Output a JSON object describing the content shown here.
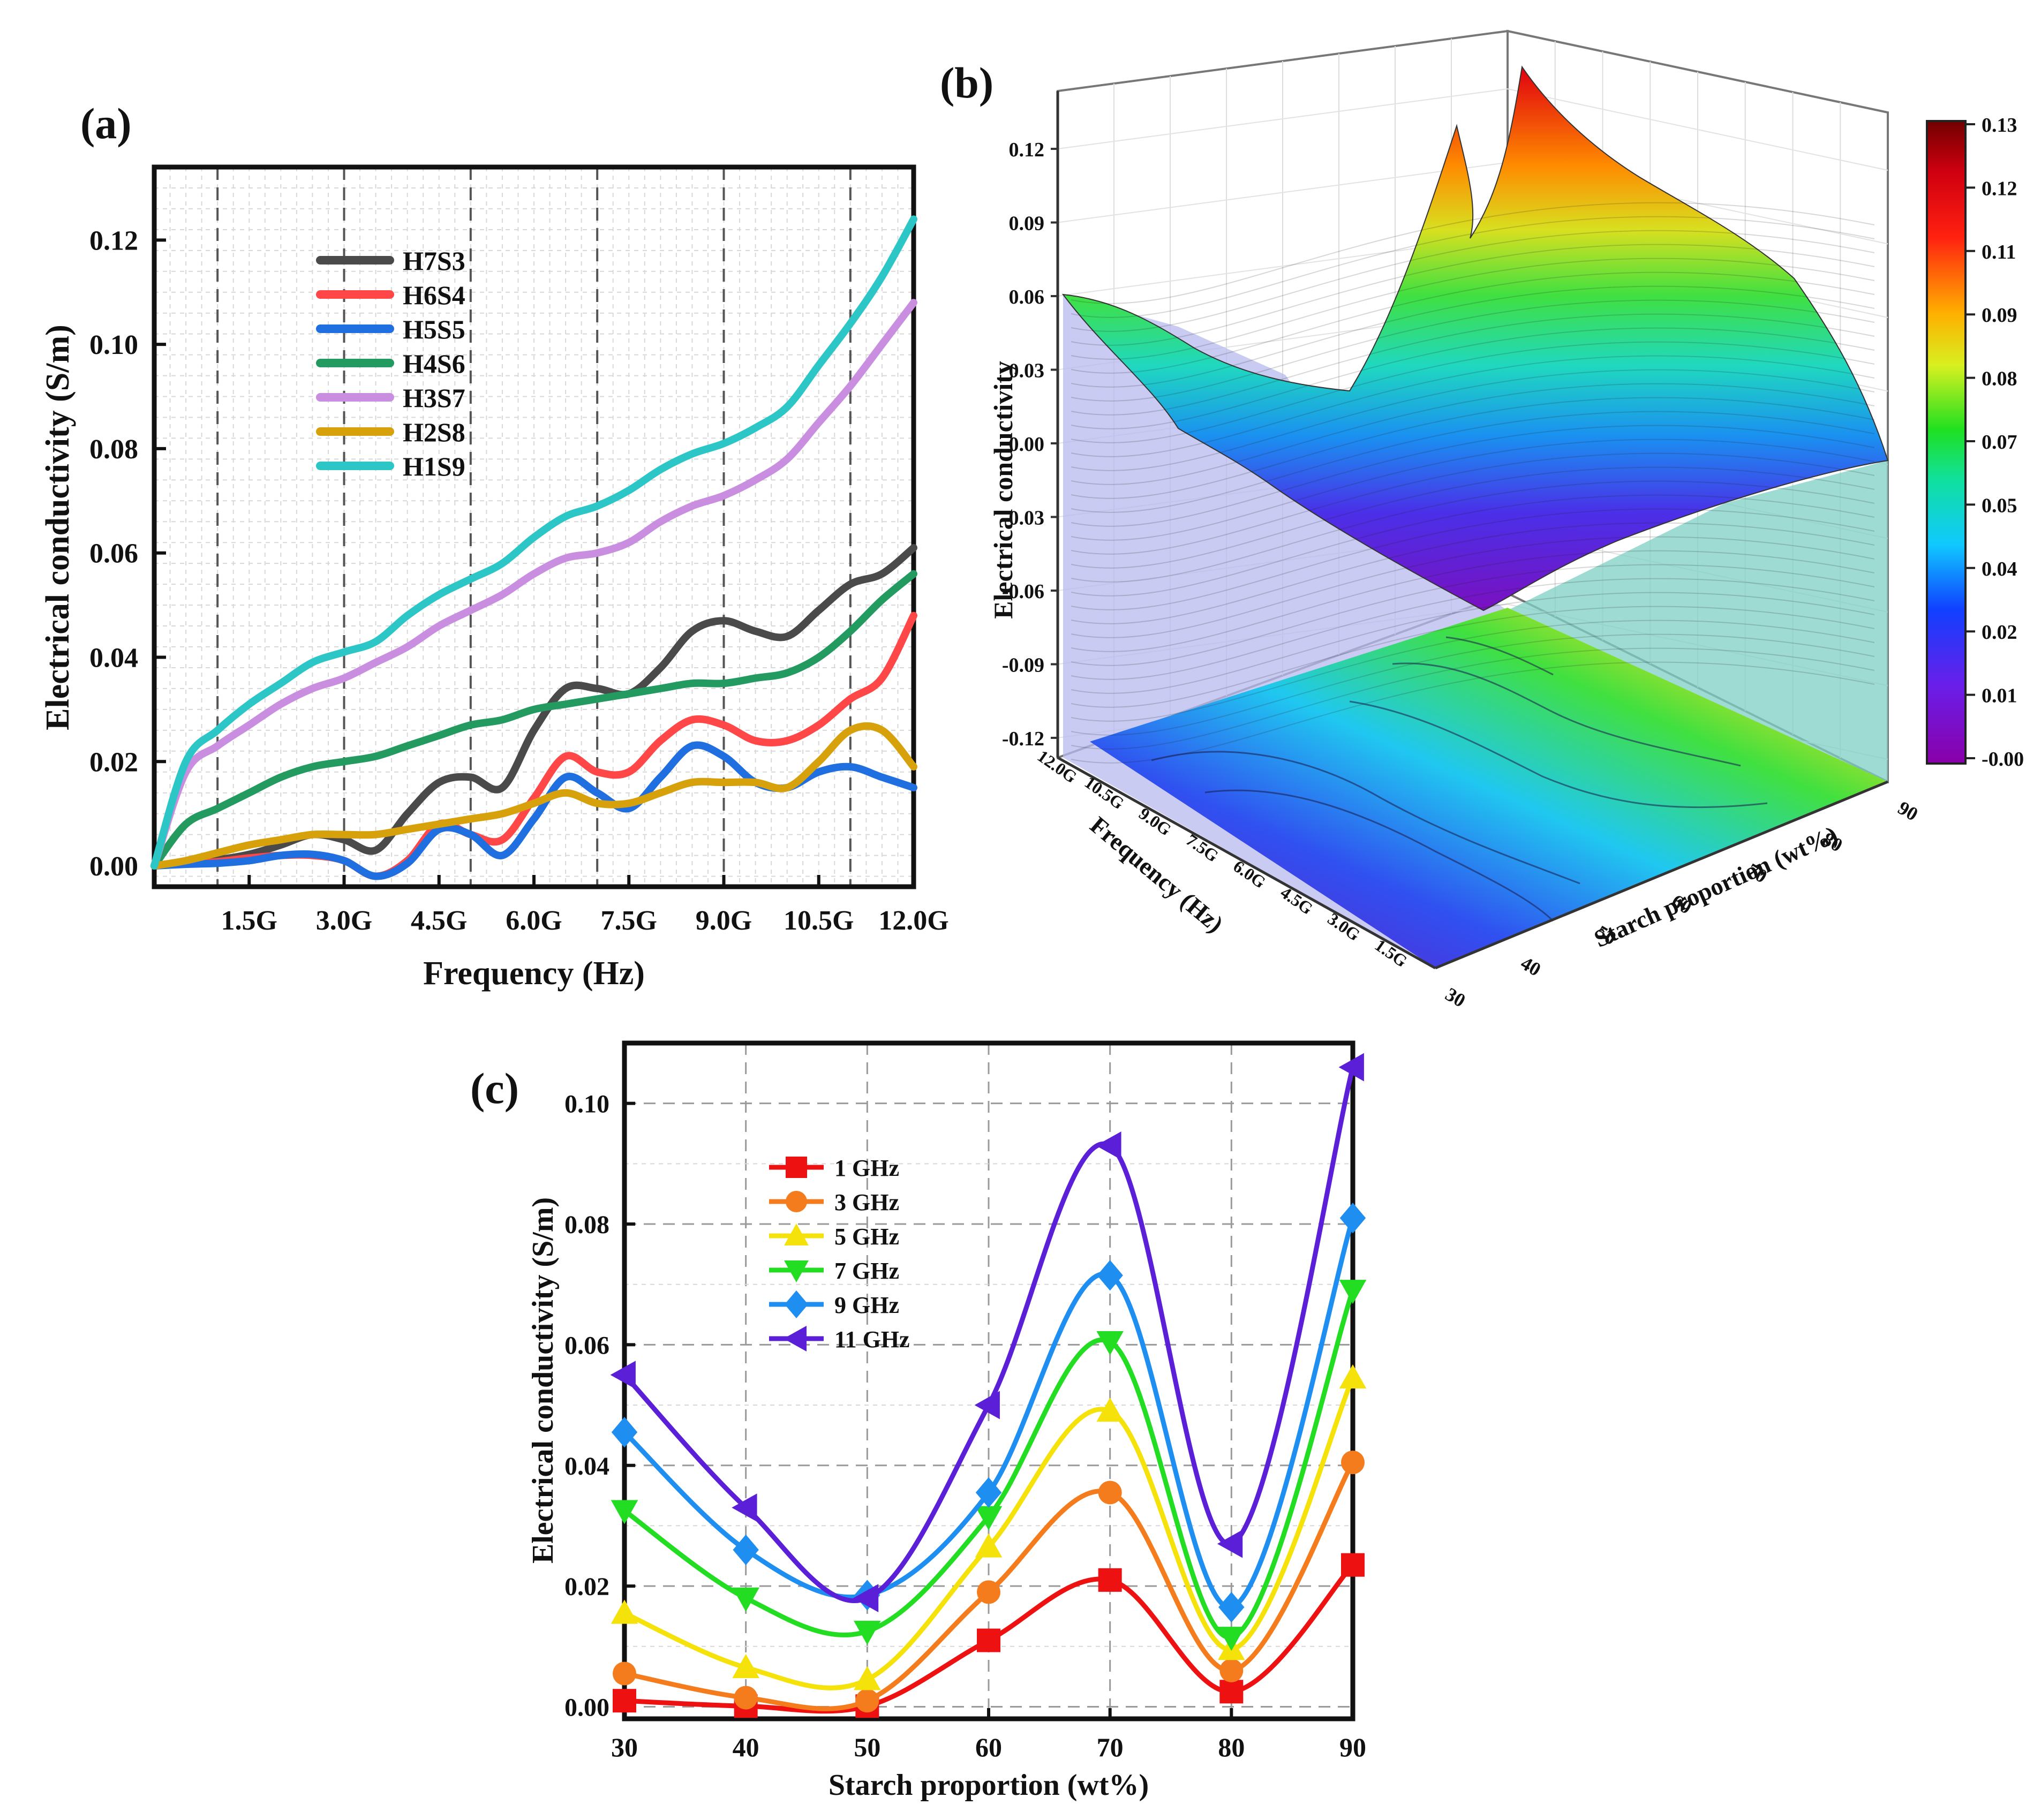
{
  "chart_data": [
    {
      "panel_label": "(a)",
      "type": "line",
      "xlabel": "Frequency (Hz)",
      "ylabel": "Electrical conductivity (S/m)",
      "xlim": [
        0,
        12
      ],
      "ylim": [
        -0.004,
        0.134
      ],
      "x_tick_values": [
        1.5,
        3.0,
        4.5,
        6.0,
        7.5,
        9.0,
        10.5,
        12.0
      ],
      "x_tick_labels": [
        "1.5G",
        "3.0G",
        "4.5G",
        "6.0G",
        "7.5G",
        "9.0G",
        "10.5G",
        "12.0G"
      ],
      "y_tick_values": [
        0.0,
        0.02,
        0.04,
        0.06,
        0.08,
        0.1,
        0.12
      ],
      "y_tick_labels": [
        "0.00",
        "0.02",
        "0.04",
        "0.06",
        "0.08",
        "0.10",
        "0.12"
      ],
      "legend_position": "top-left",
      "x": [
        0,
        0.5,
        1,
        1.5,
        2,
        2.5,
        3,
        3.5,
        4,
        4.5,
        5,
        5.5,
        6,
        6.5,
        7,
        7.5,
        8,
        8.5,
        9,
        9.5,
        10,
        10.5,
        11,
        11.5,
        12
      ],
      "series": [
        {
          "name": "H7S3",
          "color": "#4a4a4a",
          "values": [
            0,
            0.0008,
            0.0012,
            0.0022,
            0.004,
            0.006,
            0.005,
            0.003,
            0.01,
            0.016,
            0.017,
            0.015,
            0.026,
            0.034,
            0.034,
            0.033,
            0.038,
            0.045,
            0.047,
            0.045,
            0.044,
            0.049,
            0.054,
            0.056,
            0.061
          ]
        },
        {
          "name": "H6S4",
          "color": "#ff4747",
          "values": [
            0,
            0.0004,
            0.0008,
            0.0015,
            0.002,
            0.002,
            0.001,
            -0.002,
            0.001,
            0.008,
            0.006,
            0.005,
            0.013,
            0.021,
            0.018,
            0.018,
            0.024,
            0.028,
            0.027,
            0.024,
            0.024,
            0.027,
            0.032,
            0.036,
            0.048
          ]
        },
        {
          "name": "H5S5",
          "color": "#1f6fe0",
          "values": [
            0,
            0.0003,
            0.0005,
            0.001,
            0.002,
            0.0022,
            0.001,
            -0.002,
            0.0005,
            0.007,
            0.006,
            0.002,
            0.009,
            0.017,
            0.014,
            0.011,
            0.017,
            0.023,
            0.021,
            0.016,
            0.015,
            0.018,
            0.019,
            0.017,
            0.015
          ]
        },
        {
          "name": "H4S6",
          "color": "#239a5f",
          "values": [
            0,
            0.008,
            0.011,
            0.014,
            0.017,
            0.019,
            0.02,
            0.021,
            0.023,
            0.025,
            0.027,
            0.028,
            0.03,
            0.031,
            0.032,
            0.033,
            0.034,
            0.035,
            0.035,
            0.036,
            0.037,
            0.04,
            0.045,
            0.051,
            0.056
          ]
        },
        {
          "name": "H3S7",
          "color": "#c98ee0",
          "values": [
            0,
            0.018,
            0.023,
            0.027,
            0.031,
            0.034,
            0.036,
            0.039,
            0.042,
            0.046,
            0.049,
            0.052,
            0.056,
            0.059,
            0.06,
            0.062,
            0.066,
            0.069,
            0.071,
            0.074,
            0.078,
            0.085,
            0.092,
            0.1,
            0.108
          ]
        },
        {
          "name": "H2S8",
          "color": "#d6a10a",
          "values": [
            0,
            0.001,
            0.0025,
            0.004,
            0.005,
            0.006,
            0.006,
            0.006,
            0.007,
            0.008,
            0.009,
            0.01,
            0.012,
            0.014,
            0.012,
            0.012,
            0.014,
            0.016,
            0.016,
            0.016,
            0.015,
            0.02,
            0.026,
            0.026,
            0.019
          ]
        },
        {
          "name": "H1S9",
          "color": "#2cc6c6",
          "values": [
            0,
            0.02,
            0.026,
            0.031,
            0.035,
            0.039,
            0.041,
            0.043,
            0.048,
            0.052,
            0.055,
            0.058,
            0.063,
            0.067,
            0.069,
            0.072,
            0.076,
            0.079,
            0.081,
            0.084,
            0.088,
            0.096,
            0.104,
            0.113,
            0.124
          ]
        }
      ]
    },
    {
      "panel_label": "(b)",
      "type": "surface-3d",
      "xlabel": "Starch proportion (wt%)",
      "ylabel": "Frequency (Hz)",
      "zlabel": "Electrical conductivity",
      "x_tick_labels": [
        "30",
        "40",
        "50",
        "60",
        "70",
        "80",
        "90"
      ],
      "y_tick_labels": [
        "1.5G",
        "3.0G",
        "4.5G",
        "6.0G",
        "7.5G",
        "9.0G",
        "10.5G",
        "12.0G"
      ],
      "z_tick_labels": [
        "-0.12",
        "-0.09",
        "-0.06",
        "-0.03",
        "0.00",
        "0.03",
        "0.06",
        "0.09",
        "0.12"
      ],
      "colorbar_labels": [
        "0.13",
        "0.12",
        "0.11",
        "0.09",
        "0.08",
        "0.07",
        "0.05",
        "0.04",
        "0.02",
        "0.01",
        "-0.00"
      ],
      "colorbar_range": [
        -0.0,
        0.13
      ]
    },
    {
      "panel_label": "(c)",
      "type": "line",
      "xlabel": "Starch proportion (wt%)",
      "ylabel": "Electrical conductivity (S/m)",
      "xlim": [
        30,
        90
      ],
      "ylim": [
        -0.002,
        0.11
      ],
      "x": [
        30,
        40,
        50,
        60,
        70,
        80,
        90
      ],
      "x_tick_labels": [
        "30",
        "40",
        "50",
        "60",
        "70",
        "80",
        "90"
      ],
      "y_tick_values": [
        0.0,
        0.02,
        0.04,
        0.06,
        0.08,
        0.1
      ],
      "y_tick_labels": [
        "0.00",
        "0.02",
        "0.04",
        "0.06",
        "0.08",
        "0.10"
      ],
      "legend_position": "top-left",
      "series": [
        {
          "name": "1 GHz",
          "color": "#ee1111",
          "marker": "square",
          "values": [
            0.001,
            0.0001,
            0.0001,
            0.011,
            0.021,
            0.0025,
            0.0235
          ]
        },
        {
          "name": "3 GHz",
          "color": "#f47c1c",
          "marker": "circle",
          "values": [
            0.0055,
            0.0015,
            0.001,
            0.019,
            0.0355,
            0.006,
            0.0405
          ]
        },
        {
          "name": "5 GHz",
          "color": "#f5e20a",
          "marker": "triangle-up",
          "values": [
            0.0155,
            0.0065,
            0.0045,
            0.0265,
            0.049,
            0.0095,
            0.0545
          ]
        },
        {
          "name": "7 GHz",
          "color": "#22dd22",
          "marker": "triangle-down",
          "values": [
            0.0325,
            0.018,
            0.0125,
            0.0315,
            0.0605,
            0.0115,
            0.069
          ]
        },
        {
          "name": "9 GHz",
          "color": "#1e8ff0",
          "marker": "diamond",
          "values": [
            0.0455,
            0.026,
            0.0185,
            0.0355,
            0.0715,
            0.0165,
            0.081
          ]
        },
        {
          "name": "11 GHz",
          "color": "#5b1fd8",
          "marker": "triangle-left",
          "values": [
            0.055,
            0.033,
            0.018,
            0.05,
            0.093,
            0.027,
            0.106
          ]
        }
      ]
    }
  ]
}
